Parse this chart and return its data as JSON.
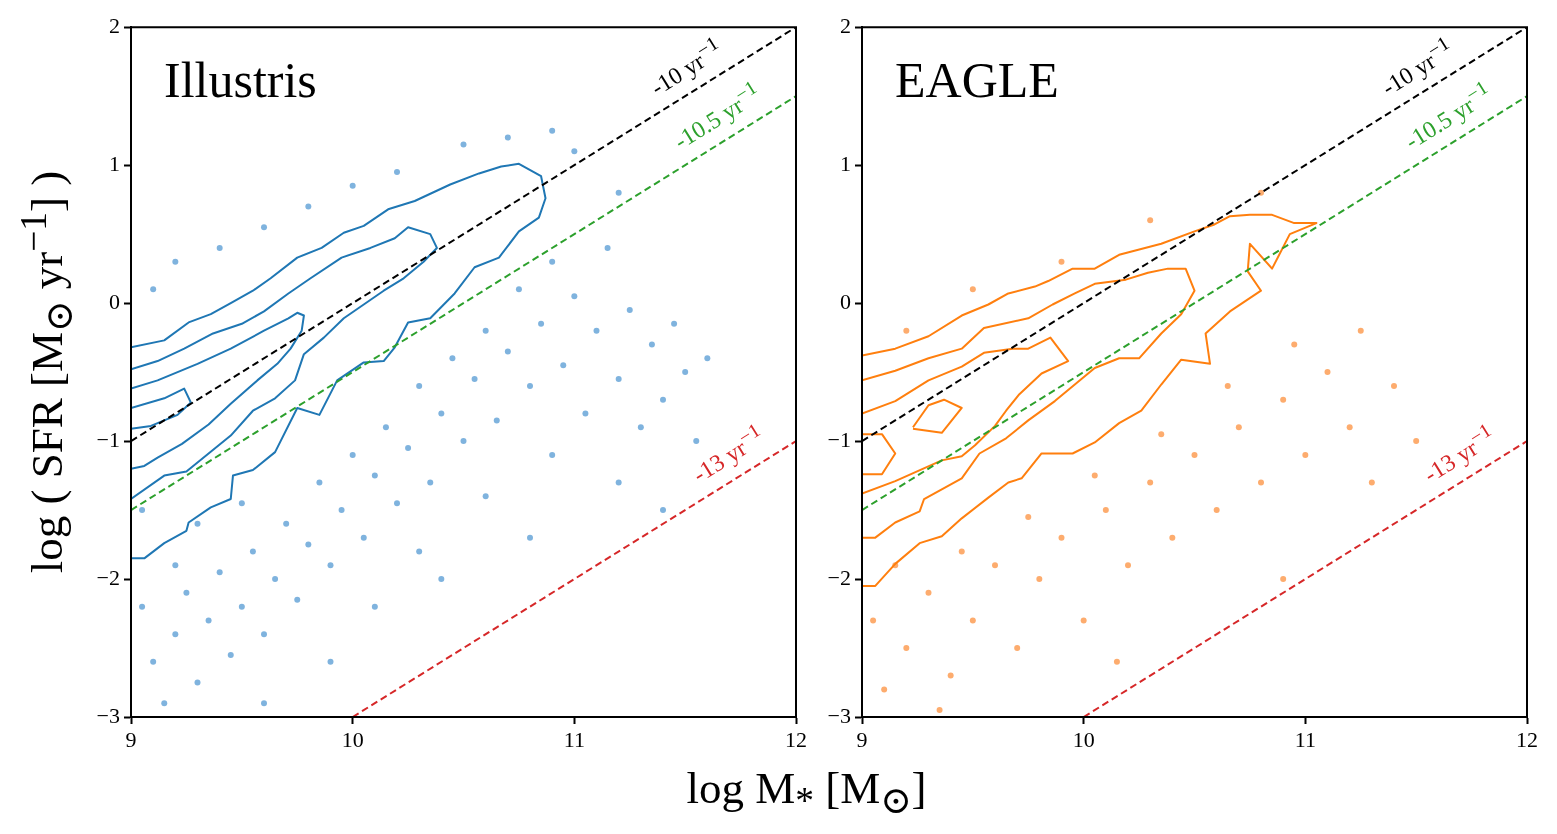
{
  "chart_data": [
    {
      "type": "scatter",
      "title": "Illustris",
      "xlabel": "log M$_{*}$ [M$_{⊙}$]",
      "ylabel": "log ( SFR [M$_{⊙}$ yr$^{−1}$] )",
      "xlim": [
        9,
        12
      ],
      "ylim": [
        -3,
        2
      ],
      "xticks": [
        9,
        10,
        11,
        12
      ],
      "yticks": [
        {
          "value": -3,
          "label": "−3"
        },
        {
          "value": -2,
          "label": "−2"
        },
        {
          "value": -1,
          "label": "−1"
        },
        0,
        1,
        2
      ],
      "series": [
        {
          "type": "scatter",
          "color": "#7fb3de",
          "marker": "circle",
          "x": [
            9.05,
            9.1,
            9.15,
            9.2,
            9.25,
            9.3,
            9.35,
            9.4,
            9.45,
            9.5,
            9.55,
            9.6,
            9.65,
            9.7,
            9.75,
            9.8,
            9.85,
            9.9,
            9.95,
            10.0,
            10.05,
            10.1,
            10.15,
            10.2,
            10.25,
            10.3,
            10.35,
            10.4,
            10.45,
            10.5,
            10.55,
            10.6,
            10.65,
            10.7,
            10.75,
            10.8,
            10.85,
            10.9,
            10.95,
            11.0,
            11.05,
            11.1,
            11.15,
            11.2,
            11.25,
            11.3,
            11.35,
            11.4,
            11.45,
            11.5,
            11.55,
            11.6,
            9.1,
            9.2,
            9.4,
            9.6,
            9.8,
            10.0,
            10.2,
            10.5,
            10.7,
            10.9,
            11.0,
            11.2,
            9.3,
            9.5,
            9.2,
            10.6,
            10.9,
            11.2,
            10.3,
            9.05,
            9.6,
            9.9,
            10.1,
            10.4,
            10.8,
            11.4
          ],
          "values": [
            -2.2,
            -2.6,
            -2.9,
            -2.4,
            -2.1,
            -2.75,
            -2.3,
            -1.95,
            -2.55,
            -2.2,
            -1.8,
            -2.4,
            -2.0,
            -1.6,
            -2.15,
            -1.75,
            -1.3,
            -1.9,
            -1.5,
            -1.1,
            -1.7,
            -1.25,
            -0.9,
            -1.45,
            -1.05,
            -0.6,
            -1.3,
            -0.8,
            -0.4,
            -1.0,
            -0.55,
            -0.2,
            -0.85,
            -0.35,
            0.1,
            -0.6,
            -0.15,
            0.3,
            -0.45,
            0.05,
            -0.8,
            -0.2,
            0.4,
            -0.55,
            -0.05,
            -0.9,
            -0.3,
            -0.7,
            -0.15,
            -0.5,
            -1.0,
            -0.4,
            0.1,
            0.3,
            0.4,
            0.55,
            0.7,
            0.85,
            0.95,
            1.15,
            1.2,
            1.25,
            1.1,
            0.8,
            -1.6,
            -1.45,
            -1.9,
            -1.4,
            -1.1,
            -1.3,
            -1.8,
            -1.5,
            -2.9,
            -2.6,
            -2.2,
            -2.0,
            -1.7,
            -1.5
          ]
        },
        {
          "type": "line",
          "color": "#1f77b4",
          "x": [
            9,
            9.15,
            9.26,
            9.36,
            9.45,
            9.55,
            9.63,
            9.75,
            9.86,
            9.96,
            10.05,
            10.16,
            10.28,
            10.44,
            10.57,
            10.67,
            10.75,
            10.85,
            10.87,
            10.84,
            10.75,
            10.66,
            10.55,
            10.46,
            10.35,
            10.25,
            10.19,
            10.14,
            10.05,
            9.93,
            9.85,
            9.75,
            9.65,
            9.55,
            9.46,
            9.45,
            9.36,
            9.26,
            9.25,
            9.15,
            9.06,
            9
          ],
          "values": [
            -0.32,
            -0.27,
            -0.14,
            -0.08,
            0.0,
            0.09,
            0.18,
            0.33,
            0.4,
            0.51,
            0.56,
            0.68,
            0.74,
            0.86,
            0.94,
            0.99,
            1.01,
            0.92,
            0.76,
            0.62,
            0.52,
            0.33,
            0.26,
            0.07,
            -0.11,
            -0.14,
            -0.32,
            -0.42,
            -0.43,
            -0.56,
            -0.81,
            -0.76,
            -1.08,
            -1.21,
            -1.25,
            -1.42,
            -1.48,
            -1.59,
            -1.65,
            -1.74,
            -1.85,
            -1.85
          ]
        },
        {
          "type": "line",
          "color": "#1f77b4",
          "x": [
            9,
            9.12,
            9.24,
            9.37,
            9.5,
            9.6,
            9.71,
            9.81,
            9.95,
            10.08,
            10.19,
            10.25,
            10.35,
            10.38,
            10.32,
            10.23,
            10.14,
            10.05,
            9.96,
            9.87,
            9.78,
            9.74,
            9.65,
            9.55,
            9.45,
            9.35,
            9.25,
            9.15,
            9
          ],
          "values": [
            -0.48,
            -0.42,
            -0.33,
            -0.22,
            -0.15,
            -0.06,
            0.07,
            0.18,
            0.33,
            0.4,
            0.47,
            0.55,
            0.5,
            0.4,
            0.3,
            0.18,
            0.09,
            -0.01,
            -0.11,
            -0.25,
            -0.37,
            -0.56,
            -0.69,
            -0.78,
            -0.96,
            -1.09,
            -1.22,
            -1.25,
            -1.42
          ]
        },
        {
          "type": "line",
          "color": "#1f77b4",
          "x": [
            9,
            9.12,
            9.3,
            9.45,
            9.6,
            9.71,
            9.75,
            9.78,
            9.77,
            9.72,
            9.66,
            9.57,
            9.45,
            9.35,
            9.23,
            9.12,
            9.06,
            9
          ],
          "values": [
            -0.62,
            -0.56,
            -0.44,
            -0.33,
            -0.2,
            -0.11,
            -0.07,
            -0.09,
            -0.2,
            -0.33,
            -0.44,
            -0.56,
            -0.73,
            -0.88,
            -1.02,
            -1.12,
            -1.18,
            -1.2
          ]
        },
        {
          "type": "line",
          "color": "#1f77b4",
          "x": [
            9,
            9.15,
            9.24,
            9.27,
            9.21,
            9.09,
            9
          ],
          "values": [
            -0.76,
            -0.69,
            -0.62,
            -0.72,
            -0.81,
            -0.89,
            -0.91
          ]
        },
        {
          "type": "line",
          "color": "#000000",
          "line_style": "dashed",
          "x": [
            9,
            12
          ],
          "values": [
            -1,
            2
          ]
        },
        {
          "type": "line",
          "color": "#2ca02c",
          "line_style": "dashed",
          "x": [
            9,
            12
          ],
          "values": [
            -1.5,
            1.5
          ]
        },
        {
          "type": "line",
          "color": "#d62728",
          "line_style": "dashed",
          "x": [
            10,
            12
          ],
          "values": [
            -3,
            -1
          ]
        }
      ],
      "annotations": [
        {
          "text": "-10 yr$^{−1}$",
          "x": 11.56,
          "y": 1.56
        },
        {
          "text": "-10.5 yr$^{−1}$",
          "x": 11.7,
          "y": 1.2
        },
        {
          "text": "-13 yr$^{−1}$",
          "x": 11.75,
          "y": -1.25
        }
      ]
    },
    {
      "type": "scatter",
      "title": "EAGLE",
      "xlim": [
        9,
        12
      ],
      "ylim": [
        -3,
        2
      ],
      "xticks": [
        9,
        10,
        11,
        12
      ],
      "yticks": [
        {
          "value": -3,
          "label": "−3"
        },
        {
          "value": -2,
          "label": "−2"
        },
        {
          "value": -1,
          "label": "−1"
        },
        0,
        1,
        2
      ],
      "series": [
        {
          "type": "scatter",
          "color": "#fdac6e",
          "marker": "circle",
          "x": [
            9.05,
            9.1,
            9.2,
            9.3,
            9.4,
            9.5,
            9.6,
            9.7,
            9.8,
            9.9,
            10.0,
            10.1,
            10.2,
            10.3,
            10.4,
            10.5,
            10.6,
            10.7,
            10.8,
            10.9,
            11.0,
            11.1,
            11.2,
            11.3,
            11.4,
            11.5,
            9.15,
            9.45,
            9.75,
            10.05,
            10.35,
            10.65,
            10.95,
            11.25,
            9.2,
            9.5,
            9.9,
            10.3,
            10.8,
            9.35,
            10.15,
            10.9
          ],
          "values": [
            -2.3,
            -2.8,
            -2.5,
            -2.1,
            -2.7,
            -2.3,
            -1.9,
            -2.5,
            -2.0,
            -1.7,
            -2.3,
            -1.5,
            -1.9,
            -1.3,
            -1.7,
            -1.1,
            -1.5,
            -0.9,
            -1.3,
            -0.7,
            -1.1,
            -0.5,
            -0.9,
            -1.3,
            -0.6,
            -1.0,
            -1.9,
            -1.8,
            -1.55,
            -1.25,
            -0.95,
            -0.6,
            -0.3,
            -0.2,
            -0.2,
            0.1,
            0.3,
            0.6,
            0.8,
            -2.95,
            -2.6,
            -2.0
          ]
        },
        {
          "type": "line",
          "color": "#ff7f0e",
          "x": [
            9,
            9.15,
            9.3,
            9.45,
            9.57,
            9.66,
            9.78,
            9.84,
            9.95,
            10.05,
            10.16,
            10.35,
            10.5,
            10.59,
            10.66,
            10.75,
            10.85,
            10.95,
            11.05,
            10.93,
            10.85,
            10.75,
            10.74,
            10.8,
            10.66,
            10.55,
            10.57,
            10.44,
            10.35,
            10.26,
            10.16,
            10.05,
            9.95,
            9.81,
            9.72,
            9.66,
            9.57,
            9.45,
            9.36,
            9.26,
            9.15,
            9.06,
            9
          ],
          "values": [
            -0.38,
            -0.33,
            -0.24,
            -0.09,
            -0.01,
            0.07,
            0.12,
            0.16,
            0.25,
            0.25,
            0.35,
            0.43,
            0.52,
            0.57,
            0.63,
            0.64,
            0.64,
            0.58,
            0.58,
            0.5,
            0.25,
            0.43,
            0.23,
            0.09,
            -0.06,
            -0.22,
            -0.44,
            -0.41,
            -0.59,
            -0.78,
            -0.87,
            -1.01,
            -1.09,
            -1.09,
            -1.27,
            -1.3,
            -1.41,
            -1.56,
            -1.69,
            -1.74,
            -1.89,
            -2.05,
            -2.05
          ]
        },
        {
          "type": "line",
          "color": "#ff7f0e",
          "x": [
            9,
            9.15,
            9.3,
            9.45,
            9.55,
            9.75,
            9.86,
            9.96,
            10.05,
            10.19,
            10.29,
            10.38,
            10.46,
            10.5,
            10.44,
            10.35,
            10.25,
            10.16,
            10.05,
            9.96,
            9.87,
            9.75,
            9.65,
            9.53,
            9.45,
            9.28,
            9.26,
            9.15,
            9.06,
            9
          ],
          "values": [
            -0.56,
            -0.49,
            -0.4,
            -0.33,
            -0.18,
            -0.11,
            -0.01,
            0.07,
            0.14,
            0.17,
            0.22,
            0.25,
            0.25,
            0.09,
            -0.08,
            -0.22,
            -0.4,
            -0.4,
            -0.47,
            -0.59,
            -0.71,
            -0.85,
            -0.98,
            -1.09,
            -1.27,
            -1.42,
            -1.51,
            -1.59,
            -1.7,
            -1.7
          ]
        },
        {
          "type": "line",
          "color": "#ff7f0e",
          "x": [
            9,
            9.15,
            9.3,
            9.45,
            9.55,
            9.68,
            9.75,
            9.85,
            9.93,
            9.81,
            9.71,
            9.65,
            9.6,
            9.51,
            9.45,
            9.36,
            9.15,
            9
          ],
          "values": [
            -0.8,
            -0.71,
            -0.56,
            -0.46,
            -0.36,
            -0.33,
            -0.33,
            -0.25,
            -0.42,
            -0.51,
            -0.66,
            -0.78,
            -0.89,
            -1.03,
            -1.11,
            -1.14,
            -1.29,
            -1.38
          ]
        },
        {
          "type": "line",
          "color": "#ff7f0e",
          "x": [
            9.23,
            9.3,
            9.37,
            9.45,
            9.36,
            9.23
          ],
          "values": [
            -0.9,
            -0.74,
            -0.7,
            -0.76,
            -0.94,
            -0.91
          ]
        },
        {
          "type": "line",
          "color": "#ff7f0e",
          "x": [
            9,
            9.09,
            9.15,
            9.09,
            9
          ],
          "values": [
            -0.95,
            -0.95,
            -1.09,
            -1.24,
            -1.24
          ]
        },
        {
          "type": "line",
          "color": "#000000",
          "line_style": "dashed",
          "x": [
            9,
            12
          ],
          "values": [
            -1,
            2
          ]
        },
        {
          "type": "line",
          "color": "#2ca02c",
          "line_style": "dashed",
          "x": [
            9,
            12
          ],
          "values": [
            -1.5,
            1.5
          ]
        },
        {
          "type": "line",
          "color": "#d62728",
          "line_style": "dashed",
          "x": [
            10,
            12
          ],
          "values": [
            -3,
            -1
          ]
        }
      ],
      "annotations": [
        {
          "text": "-10 yr$^{−1}$",
          "x": 11.56,
          "y": 1.56
        },
        {
          "text": "-10.5 yr$^{−1}$",
          "x": 11.7,
          "y": 1.2
        },
        {
          "text": "-13 yr$^{−1}$",
          "x": 11.75,
          "y": -1.25
        }
      ]
    }
  ]
}
